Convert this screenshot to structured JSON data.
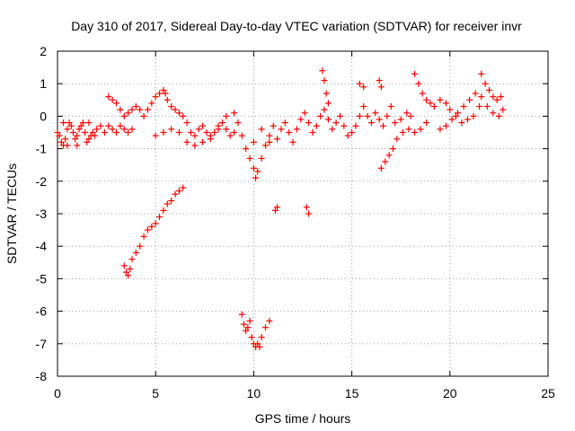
{
  "chart_data": {
    "type": "scatter",
    "title": "Day 310 of 2017, Sidereal Day-to-day VTEC variation (SDTVAR) for receiver invr",
    "xlabel": "GPS time / hours",
    "ylabel": "SDTVAR / TECUs",
    "xlim": [
      0,
      25
    ],
    "ylim": [
      -8,
      2
    ],
    "xticks": [
      "0",
      "5",
      "10",
      "15",
      "20",
      "25"
    ],
    "yticks": [
      "2",
      "1",
      "0",
      "-1",
      "-2",
      "-3",
      "-4",
      "-5",
      "-6",
      "-7",
      "-8"
    ],
    "grid": true,
    "marker": "+",
    "series": [
      {
        "name": "SDTVAR",
        "color": "#ff0000",
        "points": [
          [
            0.0,
            -0.5
          ],
          [
            0.1,
            -0.6
          ],
          [
            0.2,
            -0.8
          ],
          [
            0.3,
            -0.9
          ],
          [
            0.4,
            -0.7
          ],
          [
            0.5,
            -0.4
          ],
          [
            0.6,
            -0.2
          ],
          [
            0.7,
            -0.3
          ],
          [
            0.8,
            -0.5
          ],
          [
            0.9,
            -0.7
          ],
          [
            1.0,
            -0.6
          ],
          [
            1.1,
            -0.4
          ],
          [
            1.2,
            -0.3
          ],
          [
            1.3,
            -0.2
          ],
          [
            1.4,
            -0.5
          ],
          [
            1.5,
            -0.8
          ],
          [
            1.6,
            -0.7
          ],
          [
            1.7,
            -0.6
          ],
          [
            1.8,
            -0.5
          ],
          [
            1.9,
            -0.6
          ],
          [
            2.0,
            -0.4
          ],
          [
            2.2,
            -0.3
          ],
          [
            2.4,
            -0.5
          ],
          [
            2.6,
            -0.3
          ],
          [
            2.8,
            -0.4
          ],
          [
            3.0,
            -0.5
          ],
          [
            3.2,
            -0.3
          ],
          [
            3.4,
            -0.4
          ],
          [
            3.6,
            -0.5
          ],
          [
            3.8,
            -0.4
          ],
          [
            0.3,
            -0.2
          ],
          [
            0.5,
            -0.9
          ],
          [
            1.0,
            -0.9
          ],
          [
            1.6,
            -0.2
          ],
          [
            2.6,
            0.6
          ],
          [
            2.8,
            0.5
          ],
          [
            3.0,
            0.4
          ],
          [
            3.2,
            0.2
          ],
          [
            3.4,
            0.0
          ],
          [
            3.6,
            0.1
          ],
          [
            3.8,
            0.2
          ],
          [
            4.0,
            0.3
          ],
          [
            4.2,
            0.2
          ],
          [
            4.4,
            0.0
          ],
          [
            4.6,
            0.2
          ],
          [
            4.8,
            0.4
          ],
          [
            5.0,
            0.6
          ],
          [
            5.2,
            0.7
          ],
          [
            5.4,
            0.8
          ],
          [
            5.5,
            0.7
          ],
          [
            5.6,
            0.5
          ],
          [
            5.8,
            0.3
          ],
          [
            6.0,
            0.2
          ],
          [
            6.2,
            0.1
          ],
          [
            6.4,
            0.0
          ],
          [
            6.6,
            -0.2
          ],
          [
            6.8,
            -0.5
          ],
          [
            7.0,
            -0.6
          ],
          [
            7.2,
            -0.4
          ],
          [
            7.4,
            -0.3
          ],
          [
            7.6,
            -0.5
          ],
          [
            7.8,
            -0.7
          ],
          [
            8.0,
            -0.5
          ],
          [
            8.2,
            -0.3
          ],
          [
            8.4,
            -0.2
          ],
          [
            8.6,
            -0.4
          ],
          [
            8.8,
            -0.6
          ],
          [
            9.0,
            -0.5
          ],
          [
            5.0,
            -0.6
          ],
          [
            5.4,
            -0.5
          ],
          [
            5.8,
            -0.4
          ],
          [
            6.2,
            -0.5
          ],
          [
            6.6,
            -0.8
          ],
          [
            7.0,
            -0.9
          ],
          [
            7.4,
            -0.8
          ],
          [
            7.8,
            -0.6
          ],
          [
            8.2,
            -0.4
          ],
          [
            8.6,
            0.0
          ],
          [
            9.0,
            0.1
          ],
          [
            9.2,
            -0.2
          ],
          [
            9.4,
            -0.6
          ],
          [
            9.6,
            -1.0
          ],
          [
            9.8,
            -1.3
          ],
          [
            10.0,
            -1.6
          ],
          [
            10.1,
            -1.9
          ],
          [
            10.2,
            -1.7
          ],
          [
            10.4,
            -1.3
          ],
          [
            10.6,
            -0.9
          ],
          [
            10.8,
            -0.6
          ],
          [
            11.0,
            -0.3
          ],
          [
            10.0,
            -0.8
          ],
          [
            10.4,
            -0.4
          ],
          [
            10.8,
            -0.8
          ],
          [
            11.2,
            -0.7
          ],
          [
            11.4,
            -0.4
          ],
          [
            11.6,
            -0.2
          ],
          [
            11.8,
            -0.5
          ],
          [
            12.0,
            -0.8
          ],
          [
            12.2,
            -0.4
          ],
          [
            12.4,
            -0.1
          ],
          [
            12.6,
            0.1
          ],
          [
            12.8,
            -0.2
          ],
          [
            13.0,
            -0.5
          ],
          [
            13.2,
            -0.3
          ],
          [
            13.4,
            0.0
          ],
          [
            13.6,
            0.2
          ],
          [
            13.8,
            -0.1
          ],
          [
            14.0,
            -0.4
          ],
          [
            14.2,
            -0.2
          ],
          [
            14.4,
            0.0
          ],
          [
            14.6,
            -0.3
          ],
          [
            14.8,
            -0.6
          ],
          [
            15.0,
            -0.5
          ],
          [
            15.2,
            -0.3
          ],
          [
            15.4,
            0.0
          ],
          [
            15.6,
            0.3
          ],
          [
            15.8,
            0.0
          ],
          [
            16.0,
            -0.2
          ],
          [
            16.2,
            0.1
          ],
          [
            16.4,
            -0.1
          ],
          [
            16.6,
            -0.3
          ],
          [
            16.8,
            0.0
          ],
          [
            17.0,
            0.3
          ],
          [
            13.5,
            1.4
          ],
          [
            13.6,
            1.1
          ],
          [
            13.7,
            0.7
          ],
          [
            13.8,
            0.4
          ],
          [
            15.4,
            1.0
          ],
          [
            15.6,
            0.9
          ],
          [
            16.4,
            1.1
          ],
          [
            16.5,
            0.9
          ],
          [
            16.5,
            -1.6
          ],
          [
            16.7,
            -1.4
          ],
          [
            16.9,
            -1.2
          ],
          [
            17.1,
            -1.0
          ],
          [
            17.3,
            -0.7
          ],
          [
            17.6,
            -0.5
          ],
          [
            17.9,
            -0.4
          ],
          [
            18.2,
            -0.5
          ],
          [
            18.5,
            -0.4
          ],
          [
            18.8,
            -0.2
          ],
          [
            17.2,
            -0.2
          ],
          [
            17.5,
            -0.1
          ],
          [
            17.8,
            0.1
          ],
          [
            18.0,
            0.0
          ],
          [
            18.2,
            1.3
          ],
          [
            18.4,
            1.0
          ],
          [
            18.6,
            0.7
          ],
          [
            18.8,
            0.5
          ],
          [
            19.0,
            0.4
          ],
          [
            19.2,
            0.3
          ],
          [
            19.5,
            0.5
          ],
          [
            19.8,
            0.4
          ],
          [
            20.0,
            0.2
          ],
          [
            20.3,
            0.0
          ],
          [
            20.6,
            -0.2
          ],
          [
            20.9,
            -0.1
          ],
          [
            21.2,
            0.0
          ],
          [
            21.5,
            0.3
          ],
          [
            21.6,
            1.3
          ],
          [
            21.8,
            1.0
          ],
          [
            22.0,
            0.8
          ],
          [
            22.2,
            0.6
          ],
          [
            22.4,
            0.5
          ],
          [
            22.6,
            0.6
          ],
          [
            22.7,
            0.2
          ],
          [
            19.5,
            -0.4
          ],
          [
            19.8,
            -0.3
          ],
          [
            20.1,
            -0.1
          ],
          [
            20.4,
            0.1
          ],
          [
            20.7,
            0.3
          ],
          [
            21.0,
            0.5
          ],
          [
            21.3,
            0.7
          ],
          [
            21.6,
            0.6
          ],
          [
            21.9,
            0.3
          ],
          [
            22.2,
            0.1
          ],
          [
            22.5,
            0.0
          ],
          [
            11.1,
            -2.9
          ],
          [
            11.2,
            -2.8
          ],
          [
            12.7,
            -2.8
          ],
          [
            12.8,
            -3.0
          ],
          [
            3.4,
            -4.6
          ],
          [
            3.5,
            -4.8
          ],
          [
            3.6,
            -4.9
          ],
          [
            3.7,
            -4.7
          ],
          [
            3.8,
            -4.4
          ],
          [
            4.0,
            -4.2
          ],
          [
            4.2,
            -4.0
          ],
          [
            4.4,
            -3.7
          ],
          [
            4.6,
            -3.5
          ],
          [
            4.8,
            -3.4
          ],
          [
            5.0,
            -3.3
          ],
          [
            5.2,
            -3.1
          ],
          [
            5.4,
            -2.9
          ],
          [
            5.6,
            -2.7
          ],
          [
            5.8,
            -2.6
          ],
          [
            6.0,
            -2.4
          ],
          [
            6.2,
            -2.3
          ],
          [
            6.4,
            -2.2
          ],
          [
            9.4,
            -6.1
          ],
          [
            9.5,
            -6.4
          ],
          [
            9.6,
            -6.6
          ],
          [
            9.7,
            -6.5
          ],
          [
            9.8,
            -6.3
          ],
          [
            9.9,
            -6.8
          ],
          [
            10.0,
            -7.0
          ],
          [
            10.1,
            -7.1
          ],
          [
            10.2,
            -7.0
          ],
          [
            10.3,
            -7.1
          ],
          [
            10.4,
            -6.8
          ],
          [
            10.6,
            -6.5
          ],
          [
            10.8,
            -6.3
          ]
        ]
      }
    ]
  }
}
